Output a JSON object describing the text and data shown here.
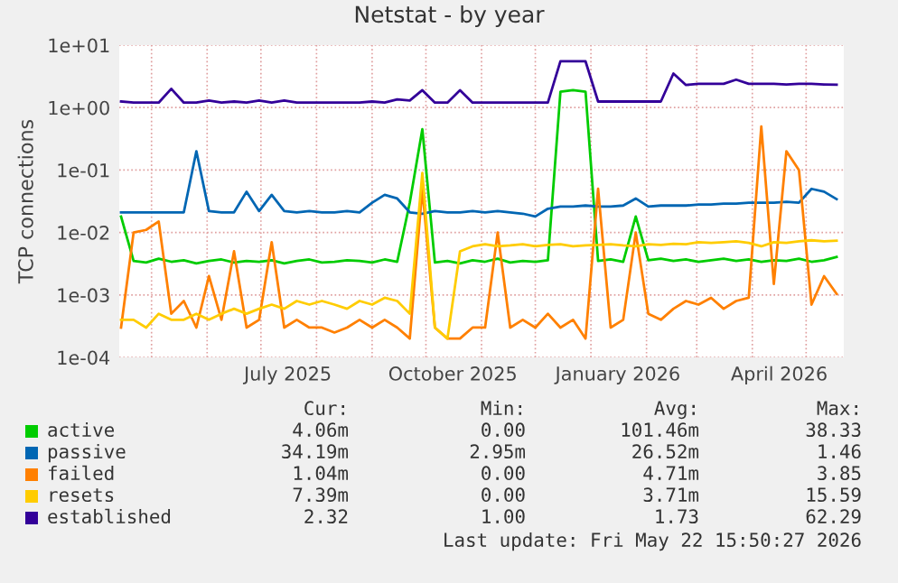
{
  "chart_data": {
    "type": "line",
    "title": "Netstat - by year",
    "ylabel": "TCP connections",
    "log": "y",
    "grid": true,
    "legend": "bottom",
    "marker": "none",
    "line_style": "solid",
    "ylim": [
      0.0001,
      10
    ],
    "yticks": [
      {
        "value": 0.0001,
        "label": "1e-04"
      },
      {
        "value": 0.001,
        "label": "1e-03"
      },
      {
        "value": 0.01,
        "label": "1e-02"
      },
      {
        "value": 0.1,
        "label": "1e-01"
      },
      {
        "value": 1,
        "label": "1e+00"
      },
      {
        "value": 10,
        "label": "1e+01"
      }
    ],
    "xlim": [
      "2025-04-13",
      "2026-05-22"
    ],
    "xticks": [
      {
        "value": "2025-07-16",
        "label": "July 2025"
      },
      {
        "value": "2025-10-16",
        "label": "October 2025"
      },
      {
        "value": "2026-01-16",
        "label": "January 2026"
      },
      {
        "value": "2026-04-16",
        "label": "April 2026"
      }
    ],
    "x": [
      "2025-04-14",
      "2025-04-21",
      "2025-04-28",
      "2025-05-05",
      "2025-05-12",
      "2025-05-19",
      "2025-05-26",
      "2025-06-02",
      "2025-06-09",
      "2025-06-16",
      "2025-06-23",
      "2025-06-30",
      "2025-07-07",
      "2025-07-14",
      "2025-07-21",
      "2025-07-28",
      "2025-08-04",
      "2025-08-11",
      "2025-08-18",
      "2025-08-25",
      "2025-09-01",
      "2025-09-08",
      "2025-09-15",
      "2025-09-22",
      "2025-09-29",
      "2025-10-06",
      "2025-10-13",
      "2025-10-20",
      "2025-10-27",
      "2025-11-03",
      "2025-11-10",
      "2025-11-17",
      "2025-11-24",
      "2025-12-01",
      "2025-12-08",
      "2025-12-15",
      "2025-12-22",
      "2025-12-29",
      "2026-01-05",
      "2026-01-12",
      "2026-01-19",
      "2026-01-26",
      "2026-02-02",
      "2026-02-09",
      "2026-02-16",
      "2026-02-23",
      "2026-03-02",
      "2026-03-09",
      "2026-03-16",
      "2026-03-23",
      "2026-03-30",
      "2026-04-06",
      "2026-04-13",
      "2026-04-20",
      "2026-04-27",
      "2026-05-04",
      "2026-05-11",
      "2026-05-18"
    ],
    "series": [
      {
        "name": "active",
        "color": "#00cc00",
        "values": [
          0.018,
          0.0035,
          0.0033,
          0.0038,
          0.0034,
          0.0036,
          0.0032,
          0.0035,
          0.0037,
          0.0033,
          0.0035,
          0.0034,
          0.0036,
          0.0032,
          0.0035,
          0.0037,
          0.0033,
          0.0034,
          0.0036,
          0.0035,
          0.0033,
          0.0037,
          0.0034,
          0.03,
          0.45,
          0.0033,
          0.0035,
          0.0032,
          0.0036,
          0.0034,
          0.0038,
          0.0033,
          0.0035,
          0.0034,
          0.0036,
          1.8,
          1.9,
          1.8,
          0.0035,
          0.0037,
          0.0034,
          0.018,
          0.0036,
          0.0038,
          0.0035,
          0.0037,
          0.0034,
          0.0036,
          0.0038,
          0.0035,
          0.0037,
          0.0034,
          0.0036,
          0.0035,
          0.0038,
          0.0034,
          0.0036,
          0.00406
        ]
      },
      {
        "name": "passive",
        "color": "#0066b3",
        "values": [
          0.021,
          0.021,
          0.021,
          0.021,
          0.021,
          0.021,
          0.2,
          0.022,
          0.021,
          0.021,
          0.045,
          0.022,
          0.04,
          0.022,
          0.021,
          0.022,
          0.021,
          0.021,
          0.022,
          0.021,
          0.03,
          0.04,
          0.035,
          0.021,
          0.02,
          0.022,
          0.021,
          0.021,
          0.022,
          0.021,
          0.022,
          0.021,
          0.02,
          0.018,
          0.024,
          0.026,
          0.026,
          0.027,
          0.026,
          0.026,
          0.027,
          0.035,
          0.026,
          0.027,
          0.027,
          0.027,
          0.028,
          0.028,
          0.029,
          0.029,
          0.03,
          0.03,
          0.03,
          0.031,
          0.03,
          0.05,
          0.045,
          0.03419
        ]
      },
      {
        "name": "failed",
        "color": "#ff8000",
        "values": [
          0.0003,
          0.01,
          0.011,
          0.015,
          0.0005,
          0.0008,
          0.0003,
          0.002,
          0.0004,
          0.005,
          0.0003,
          0.0004,
          0.007,
          0.0003,
          0.0004,
          0.0003,
          0.0003,
          0.00025,
          0.0003,
          0.0004,
          0.0003,
          0.0004,
          0.0003,
          0.0002,
          0.05,
          0.0003,
          0.0002,
          0.0002,
          0.0003,
          0.0003,
          0.01,
          0.0003,
          0.0004,
          0.0003,
          0.0005,
          0.0003,
          0.0004,
          0.0002,
          0.05,
          0.0003,
          0.0004,
          0.01,
          0.0005,
          0.0004,
          0.0006,
          0.0008,
          0.0007,
          0.0009,
          0.0006,
          0.0008,
          0.0009,
          0.5,
          0.0015,
          0.2,
          0.1,
          0.0007,
          0.002,
          0.00104
        ]
      },
      {
        "name": "resets",
        "color": "#ffcc00",
        "values": [
          0.0004,
          0.0004,
          0.0003,
          0.0005,
          0.0004,
          0.0004,
          0.0005,
          0.0004,
          0.0005,
          0.0006,
          0.0005,
          0.0006,
          0.0007,
          0.0006,
          0.0008,
          0.0007,
          0.0008,
          0.0007,
          0.0006,
          0.0008,
          0.0007,
          0.0009,
          0.0008,
          0.0005,
          0.09,
          0.0003,
          0.0002,
          0.005,
          0.006,
          0.0065,
          0.006,
          0.0062,
          0.0065,
          0.006,
          0.0063,
          0.0065,
          0.006,
          0.0062,
          0.0063,
          0.0065,
          0.0062,
          0.006,
          0.0065,
          0.0063,
          0.0066,
          0.0065,
          0.007,
          0.0068,
          0.007,
          0.0072,
          0.0068,
          0.006,
          0.007,
          0.0068,
          0.0072,
          0.0075,
          0.0072,
          0.00739
        ]
      },
      {
        "name": "established",
        "color": "#330099",
        "values": [
          1.25,
          1.2,
          1.2,
          1.2,
          2.0,
          1.2,
          1.2,
          1.3,
          1.2,
          1.25,
          1.2,
          1.3,
          1.2,
          1.3,
          1.2,
          1.2,
          1.2,
          1.2,
          1.2,
          1.2,
          1.25,
          1.2,
          1.35,
          1.3,
          1.9,
          1.2,
          1.2,
          1.9,
          1.2,
          1.2,
          1.2,
          1.2,
          1.2,
          1.2,
          1.2,
          5.5,
          5.5,
          5.5,
          1.25,
          1.25,
          1.25,
          1.25,
          1.25,
          1.25,
          3.5,
          2.3,
          2.4,
          2.4,
          2.4,
          2.8,
          2.4,
          2.4,
          2.4,
          2.35,
          2.4,
          2.4,
          2.35,
          2.32
        ]
      }
    ],
    "annotations": [
      "Cur:",
      "Min:",
      "Avg:",
      "Max:",
      "4.06m",
      "0.00",
      "101.46m",
      "38.33",
      "34.19m",
      "2.95m",
      "26.52m",
      "1.46",
      "1.04m",
      "0.00",
      "4.71m",
      "3.85",
      "7.39m",
      "0.00",
      "3.71m",
      "15.59",
      "2.32",
      "1.00",
      "1.73",
      "62.29",
      "Last update: Fri May 22 15:50:27 2026"
    ]
  }
}
